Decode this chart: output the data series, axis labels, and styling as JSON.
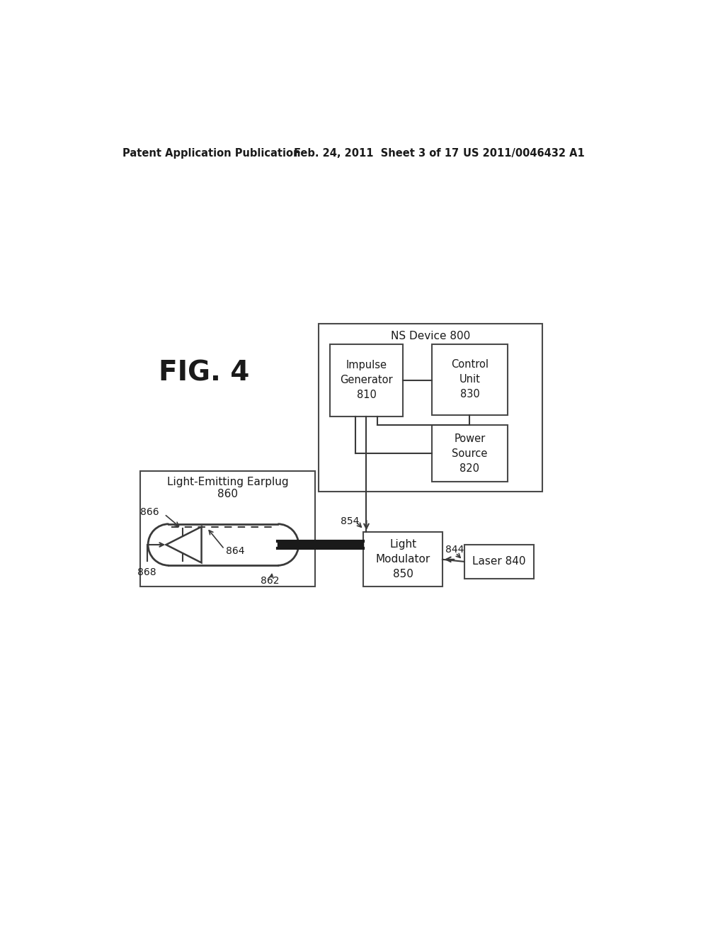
{
  "bg_color": "#ffffff",
  "header_left": "Patent Application Publication",
  "header_mid": "Feb. 24, 2011  Sheet 3 of 17",
  "header_right": "US 2011/0046432 A1",
  "fig_label": "FIG. 4",
  "ns_device_label": "NS Device 800",
  "impulse_label": "Impulse\nGenerator\n810",
  "control_label": "Control\nUnit\n830",
  "power_label": "Power\nSource\n820",
  "light_mod_label": "Light\nModulator\n850",
  "laser_label": "Laser 840",
  "earplug_box_label1": "Light-Emitting Earplug",
  "earplug_box_label2": "860",
  "label_866": "866",
  "label_864": "864",
  "label_862": "862",
  "label_868": "868",
  "label_854": "854",
  "label_844": "844"
}
